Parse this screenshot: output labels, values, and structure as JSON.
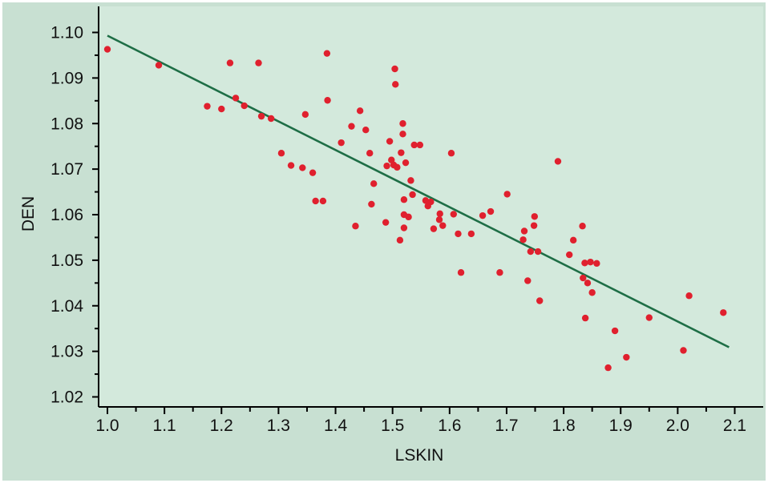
{
  "chart_data": {
    "type": "scatter",
    "title": "",
    "xlabel": "LSKIN",
    "ylabel": "DEN",
    "xlim": [
      1.0,
      2.1
    ],
    "ylim": [
      1.02,
      1.1
    ],
    "x_ticks": [
      "1.0",
      "1.1",
      "1.2",
      "1.3",
      "1.4",
      "1.5",
      "1.6",
      "1.7",
      "1.8",
      "1.9",
      "2.0",
      "2.1"
    ],
    "y_ticks": [
      "1.02",
      "1.03",
      "1.04",
      "1.05",
      "1.06",
      "1.07",
      "1.08",
      "1.09",
      "1.10"
    ],
    "grid": false,
    "colors": {
      "panel_background": "#d3e9dc",
      "frame_background": "#c8e0d2",
      "points": "#e0202e",
      "fit_line": "#1e6e46"
    },
    "fit_line": {
      "x": [
        1.0,
        2.09
      ],
      "y": [
        1.0993,
        1.0309
      ]
    },
    "points": [
      {
        "x": 1.0,
        "y": 1.0963
      },
      {
        "x": 1.09,
        "y": 1.0928
      },
      {
        "x": 1.175,
        "y": 1.0838
      },
      {
        "x": 1.2,
        "y": 1.0832
      },
      {
        "x": 1.215,
        "y": 1.0933
      },
      {
        "x": 1.225,
        "y": 1.0856
      },
      {
        "x": 1.24,
        "y": 1.0839
      },
      {
        "x": 1.265,
        "y": 1.0933
      },
      {
        "x": 1.27,
        "y": 1.0816
      },
      {
        "x": 1.287,
        "y": 1.0811
      },
      {
        "x": 1.305,
        "y": 1.0735
      },
      {
        "x": 1.322,
        "y": 1.0708
      },
      {
        "x": 1.342,
        "y": 1.0703
      },
      {
        "x": 1.347,
        "y": 1.082
      },
      {
        "x": 1.36,
        "y": 1.0692
      },
      {
        "x": 1.365,
        "y": 1.063
      },
      {
        "x": 1.378,
        "y": 1.063
      },
      {
        "x": 1.385,
        "y": 1.0954
      },
      {
        "x": 1.386,
        "y": 1.0851
      },
      {
        "x": 1.41,
        "y": 1.0758
      },
      {
        "x": 1.428,
        "y": 1.0794
      },
      {
        "x": 1.435,
        "y": 1.0575
      },
      {
        "x": 1.443,
        "y": 1.0828
      },
      {
        "x": 1.453,
        "y": 1.0786
      },
      {
        "x": 1.46,
        "y": 1.0735
      },
      {
        "x": 1.463,
        "y": 1.0623
      },
      {
        "x": 1.467,
        "y": 1.0668
      },
      {
        "x": 1.488,
        "y": 1.0583
      },
      {
        "x": 1.49,
        "y": 1.0707
      },
      {
        "x": 1.495,
        "y": 1.0761
      },
      {
        "x": 1.498,
        "y": 1.072
      },
      {
        "x": 1.502,
        "y": 1.0709
      },
      {
        "x": 1.504,
        "y": 1.092
      },
      {
        "x": 1.505,
        "y": 1.0886
      },
      {
        "x": 1.508,
        "y": 1.0704
      },
      {
        "x": 1.513,
        "y": 1.0544
      },
      {
        "x": 1.515,
        "y": 1.0736
      },
      {
        "x": 1.518,
        "y": 1.08
      },
      {
        "x": 1.518,
        "y": 1.0777
      },
      {
        "x": 1.52,
        "y": 1.0633
      },
      {
        "x": 1.52,
        "y": 1.06
      },
      {
        "x": 1.52,
        "y": 1.0571
      },
      {
        "x": 1.523,
        "y": 1.0714
      },
      {
        "x": 1.528,
        "y": 1.0595
      },
      {
        "x": 1.532,
        "y": 1.0675
      },
      {
        "x": 1.535,
        "y": 1.0644
      },
      {
        "x": 1.538,
        "y": 1.0753
      },
      {
        "x": 1.548,
        "y": 1.0753
      },
      {
        "x": 1.558,
        "y": 1.0631
      },
      {
        "x": 1.562,
        "y": 1.0619
      },
      {
        "x": 1.567,
        "y": 1.0628
      },
      {
        "x": 1.572,
        "y": 1.0569
      },
      {
        "x": 1.582,
        "y": 1.0589
      },
      {
        "x": 1.583,
        "y": 1.0602
      },
      {
        "x": 1.588,
        "y": 1.0576
      },
      {
        "x": 1.603,
        "y": 1.0735
      },
      {
        "x": 1.607,
        "y": 1.0601
      },
      {
        "x": 1.615,
        "y": 1.0558
      },
      {
        "x": 1.62,
        "y": 1.0473
      },
      {
        "x": 1.638,
        "y": 1.0558
      },
      {
        "x": 1.658,
        "y": 1.0598
      },
      {
        "x": 1.672,
        "y": 1.0607
      },
      {
        "x": 1.688,
        "y": 1.0473
      },
      {
        "x": 1.701,
        "y": 1.0645
      },
      {
        "x": 1.729,
        "y": 1.0545
      },
      {
        "x": 1.731,
        "y": 1.0564
      },
      {
        "x": 1.737,
        "y": 1.0455
      },
      {
        "x": 1.742,
        "y": 1.0519
      },
      {
        "x": 1.748,
        "y": 1.0576
      },
      {
        "x": 1.749,
        "y": 1.0596
      },
      {
        "x": 1.755,
        "y": 1.0519
      },
      {
        "x": 1.758,
        "y": 1.0411
      },
      {
        "x": 1.79,
        "y": 1.0717
      },
      {
        "x": 1.81,
        "y": 1.0512
      },
      {
        "x": 1.817,
        "y": 1.0544
      },
      {
        "x": 1.833,
        "y": 1.0575
      },
      {
        "x": 1.834,
        "y": 1.0461
      },
      {
        "x": 1.837,
        "y": 1.0494
      },
      {
        "x": 1.838,
        "y": 1.0373
      },
      {
        "x": 1.842,
        "y": 1.045
      },
      {
        "x": 1.847,
        "y": 1.0496
      },
      {
        "x": 1.85,
        "y": 1.0429
      },
      {
        "x": 1.858,
        "y": 1.0493
      },
      {
        "x": 1.878,
        "y": 1.0264
      },
      {
        "x": 1.89,
        "y": 1.0345
      },
      {
        "x": 1.91,
        "y": 1.0287
      },
      {
        "x": 1.95,
        "y": 1.0374
      },
      {
        "x": 2.01,
        "y": 1.0302
      },
      {
        "x": 2.02,
        "y": 1.0422
      },
      {
        "x": 2.08,
        "y": 1.0385
      }
    ]
  }
}
